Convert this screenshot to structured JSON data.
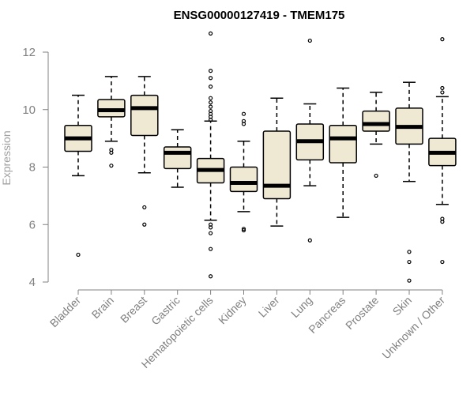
{
  "chart_data": {
    "type": "boxplot",
    "title": "ENSG00000127419 - TMEM175",
    "xlabel": "",
    "ylabel": "Expression",
    "ylim": [
      4,
      12
    ],
    "yticks": [
      4,
      6,
      8,
      10,
      12
    ],
    "box_fill": "#efe8d2",
    "colors": {
      "box_stroke": "#000000",
      "axis": "#808080",
      "median": "#000000"
    },
    "categories": [
      "Bladder",
      "Brain",
      "Breast",
      "Gastric",
      "Hematopoietic cells",
      "Kidney",
      "Liver",
      "Lung",
      "Pancreas",
      "Prostate",
      "Skin",
      "Unknown / Other"
    ],
    "series": [
      {
        "name": "Bladder",
        "whisker_low": 7.7,
        "q1": 8.55,
        "median": 9.0,
        "q3": 9.45,
        "whisker_high": 10.5,
        "outliers": [
          4.95
        ]
      },
      {
        "name": "Brain",
        "whisker_low": 8.9,
        "q1": 9.75,
        "median": 9.98,
        "q3": 10.35,
        "whisker_high": 11.15,
        "outliers": [
          8.5,
          8.6,
          8.05
        ]
      },
      {
        "name": "Breast",
        "whisker_low": 7.8,
        "q1": 9.1,
        "median": 10.05,
        "q3": 10.5,
        "whisker_high": 11.15,
        "outliers": [
          6.6,
          6.0
        ]
      },
      {
        "name": "Gastric",
        "whisker_low": 7.3,
        "q1": 7.95,
        "median": 8.5,
        "q3": 8.7,
        "whisker_high": 9.3,
        "outliers": []
      },
      {
        "name": "Hematopoietic cells",
        "whisker_low": 6.15,
        "q1": 7.45,
        "median": 7.9,
        "q3": 8.3,
        "whisker_high": 9.6,
        "outliers": [
          12.65,
          11.35,
          11.1,
          10.8,
          10.4,
          10.25,
          10.1,
          9.95,
          9.85,
          9.75,
          9.65,
          6.0,
          5.9,
          5.7,
          5.15,
          4.2
        ]
      },
      {
        "name": "Kidney",
        "whisker_low": 6.45,
        "q1": 7.15,
        "median": 7.45,
        "q3": 8.0,
        "whisker_high": 8.9,
        "outliers": [
          9.85,
          9.6,
          9.5,
          5.85,
          5.8
        ]
      },
      {
        "name": "Liver",
        "whisker_low": 5.95,
        "q1": 6.9,
        "median": 7.35,
        "q3": 9.25,
        "whisker_high": 10.4,
        "outliers": []
      },
      {
        "name": "Lung",
        "whisker_low": 7.35,
        "q1": 8.25,
        "median": 8.9,
        "q3": 9.5,
        "whisker_high": 10.2,
        "outliers": [
          12.4,
          5.45
        ]
      },
      {
        "name": "Pancreas",
        "whisker_low": 6.25,
        "q1": 8.15,
        "median": 9.0,
        "q3": 9.45,
        "whisker_high": 10.75,
        "outliers": []
      },
      {
        "name": "Prostate",
        "whisker_low": 8.8,
        "q1": 9.25,
        "median": 9.5,
        "q3": 9.95,
        "whisker_high": 10.6,
        "outliers": [
          7.7
        ]
      },
      {
        "name": "Skin",
        "whisker_low": 7.5,
        "q1": 8.8,
        "median": 9.4,
        "q3": 10.05,
        "whisker_high": 10.95,
        "outliers": [
          5.05,
          4.7,
          4.05
        ]
      },
      {
        "name": "Unknown / Other",
        "whisker_low": 6.7,
        "q1": 8.05,
        "median": 8.5,
        "q3": 9.0,
        "whisker_high": 10.45,
        "outliers": [
          12.45,
          10.75,
          10.6,
          6.2,
          6.1,
          4.7
        ]
      }
    ]
  }
}
